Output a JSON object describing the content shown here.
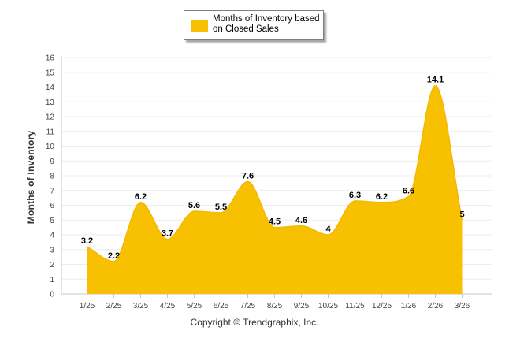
{
  "chart_data": {
    "type": "area",
    "categories": [
      "1/25",
      "2/25",
      "3/25",
      "4/25",
      "5/25",
      "6/25",
      "7/25",
      "8/25",
      "9/25",
      "10/25",
      "11/25",
      "12/25",
      "1/26",
      "2/26",
      "3/26"
    ],
    "series": [
      {
        "name": "Months of Inventory based on Closed Sales",
        "values": [
          3.2,
          2.2,
          6.2,
          3.7,
          5.6,
          5.5,
          7.6,
          4.5,
          4.6,
          4,
          6.3,
          6.2,
          6.6,
          14.1,
          5
        ],
        "color": "#f7c102"
      }
    ],
    "data_labels": [
      "3.2",
      "2.2",
      "6.2",
      "3.7",
      "5.6",
      "5.5",
      "7.6",
      "4.5",
      "4.6",
      "4",
      "6.3",
      "6.2",
      "6.6",
      "14.1",
      "5"
    ],
    "yticks": [
      0,
      1,
      2,
      3,
      4,
      5,
      6,
      7,
      8,
      9,
      10,
      11,
      12,
      13,
      14,
      15,
      16
    ],
    "ylim": [
      0,
      16
    ],
    "ylabel": "Months of Inventory",
    "xlabel": "Copyright © Trendgraphix, Inc.",
    "legend_position": "top-center",
    "grid": true
  }
}
